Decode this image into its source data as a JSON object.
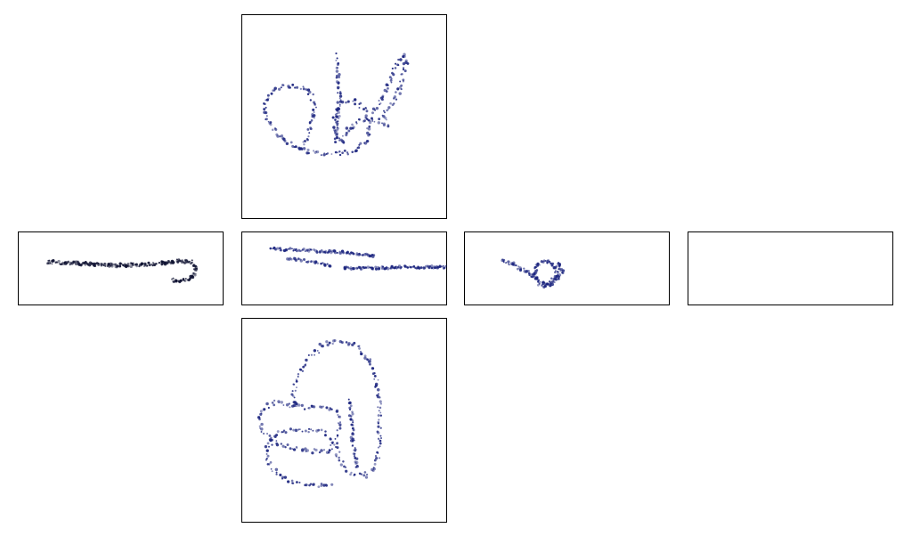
{
  "colors": {
    "point": "#1a237e",
    "point_dark": "#0d1030",
    "point_mid": "#3a3f7a"
  },
  "chart_data": [
    {
      "type": "scatter",
      "panel": "top",
      "view": "xy-unfolded",
      "shape": "trajectory-top"
    },
    {
      "type": "scatter",
      "panel": "left",
      "view": "side-1",
      "shape": "trajectory-left"
    },
    {
      "type": "scatter",
      "panel": "center",
      "view": "side-2",
      "shape": "trajectory-center"
    },
    {
      "type": "scatter",
      "panel": "right",
      "view": "side-3",
      "shape": "trajectory-right"
    },
    {
      "type": "scatter",
      "panel": "far",
      "view": "side-4",
      "shape": "empty"
    },
    {
      "type": "scatter",
      "panel": "bottom",
      "view": "xy-unfolded",
      "shape": "trajectory-bottom"
    }
  ]
}
